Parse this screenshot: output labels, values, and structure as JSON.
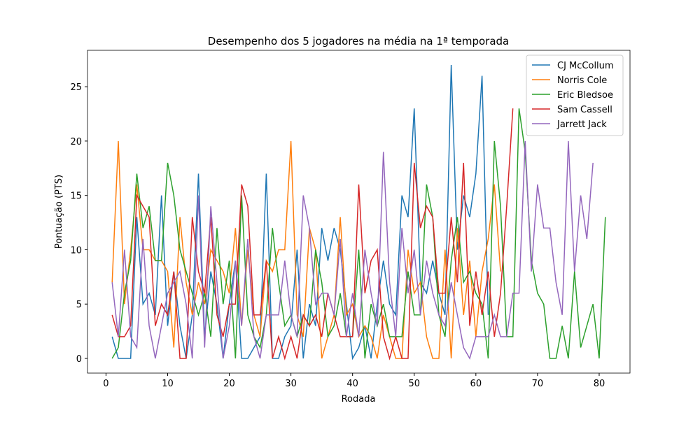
{
  "chart_data": {
    "type": "line",
    "title": "Desempenho dos 5 jogadores na média na 1ª temporada",
    "x_label": "Rodada",
    "y_label": "Pontuação (PTS)",
    "x": [
      1,
      2,
      3,
      4,
      5,
      6,
      7,
      8,
      9,
      10,
      11,
      12,
      13,
      14,
      15,
      16,
      17,
      18,
      19,
      20,
      21,
      22,
      23,
      24,
      25,
      26,
      27,
      28,
      29,
      30,
      31,
      32,
      33,
      34,
      35,
      36,
      37,
      38,
      39,
      40,
      41,
      42,
      43,
      44,
      45,
      46,
      47,
      48,
      49,
      50,
      51,
      52,
      53,
      54,
      55,
      56,
      57,
      58,
      59,
      60,
      61,
      62,
      63,
      64,
      65,
      66,
      67,
      68,
      69,
      70,
      71,
      72,
      73,
      74,
      75,
      76,
      77,
      78,
      79,
      80,
      81
    ],
    "xlim": [
      -3,
      85
    ],
    "xticks": [
      0,
      10,
      20,
      30,
      40,
      50,
      60,
      70,
      80
    ],
    "ylim": [
      -1.35,
      28.35
    ],
    "yticks": [
      0,
      5,
      10,
      15,
      20,
      25
    ],
    "legend": "upper right",
    "series": [
      {
        "name": "CJ McCollum",
        "color": "#1f77b4",
        "values": [
          2,
          0,
          0,
          0,
          13,
          5,
          6,
          4,
          15,
          3,
          8,
          3,
          0,
          4,
          17,
          2,
          8,
          5,
          0,
          5,
          9,
          0,
          0,
          1,
          2,
          17,
          0,
          0,
          2,
          3,
          10,
          0,
          5,
          3,
          12,
          9,
          12,
          10,
          5,
          0,
          1,
          3,
          0,
          5,
          9,
          5,
          4,
          15,
          13,
          23,
          7,
          6,
          9,
          6,
          4,
          27,
          10,
          15,
          13,
          17,
          26,
          4,
          null,
          null,
          null,
          null,
          null,
          null,
          null,
          null,
          null,
          null,
          null,
          null,
          null,
          null,
          null,
          null,
          null,
          null,
          null
        ]
      },
      {
        "name": "Norris Cole",
        "color": "#ff7f0e",
        "values": [
          7,
          20,
          5,
          10,
          16,
          10,
          10,
          9,
          9,
          8,
          1,
          13,
          7,
          4,
          7,
          5,
          10,
          9,
          8,
          6,
          12,
          3,
          10,
          4,
          2,
          9,
          8,
          10,
          10,
          20,
          4,
          2,
          12,
          10,
          0,
          2,
          4,
          13,
          4,
          5,
          2,
          3,
          2,
          0,
          4,
          2,
          0,
          0,
          10,
          6,
          7,
          2,
          0,
          0,
          10,
          0,
          12,
          4,
          9,
          2,
          8,
          11,
          16,
          8,
          null,
          null,
          null,
          null,
          null,
          null,
          null,
          null,
          null,
          null,
          null,
          null,
          null,
          null,
          null,
          null,
          null
        ]
      },
      {
        "name": "Eric Bledsoe",
        "color": "#2ca02c",
        "values": [
          0,
          1,
          6,
          9,
          17,
          12,
          14,
          9,
          9,
          18,
          15,
          10,
          8,
          6,
          4,
          6,
          2,
          12,
          5,
          9,
          0,
          15,
          4,
          2,
          1,
          4,
          12,
          7,
          3,
          4,
          2,
          4,
          3,
          10,
          7,
          2,
          3,
          6,
          2,
          2,
          10,
          0,
          5,
          3,
          5,
          2,
          2,
          2,
          8,
          4,
          4,
          16,
          13,
          4,
          2,
          9,
          13,
          7,
          8,
          6,
          5,
          0,
          20,
          14,
          2,
          2,
          23,
          19,
          9,
          6,
          5,
          0,
          0,
          3,
          0,
          8,
          1,
          3,
          5,
          0,
          13
        ]
      },
      {
        "name": "Sam Cassell",
        "color": "#d62728",
        "values": [
          4,
          2,
          2,
          3,
          15,
          14,
          13,
          3,
          5,
          4,
          8,
          0,
          0,
          13,
          8,
          6,
          13,
          4,
          2,
          5,
          5,
          16,
          14,
          4,
          4,
          9,
          0,
          2,
          0,
          2,
          0,
          4,
          3,
          4,
          2,
          6,
          4,
          2,
          2,
          2,
          16,
          6,
          9,
          10,
          2,
          0,
          2,
          0,
          0,
          18,
          12,
          14,
          13,
          6,
          6,
          13,
          7,
          18,
          3,
          8,
          4,
          8,
          2,
          6,
          14,
          23,
          null,
          null,
          null,
          null,
          null,
          null,
          null,
          null,
          null,
          null,
          null,
          null,
          null,
          null,
          null
        ]
      },
      {
        "name": "Jarrett Jack",
        "color": "#9467bd",
        "values": [
          7,
          2,
          10,
          2,
          1,
          11,
          3,
          0,
          3,
          6,
          7,
          8,
          5,
          0,
          15,
          1,
          14,
          7,
          0,
          3,
          9,
          3,
          11,
          2,
          0,
          4,
          4,
          4,
          9,
          4,
          2,
          15,
          12,
          5,
          6,
          6,
          4,
          11,
          2,
          6,
          2,
          10,
          6,
          3,
          19,
          7,
          2,
          12,
          6,
          10,
          4,
          9,
          6,
          4,
          3,
          7,
          4,
          1,
          0,
          2,
          2,
          2,
          4,
          2,
          2,
          6,
          6,
          20,
          8,
          16,
          12,
          12,
          7,
          4,
          20,
          8,
          15,
          11,
          18,
          null,
          null
        ]
      }
    ]
  }
}
